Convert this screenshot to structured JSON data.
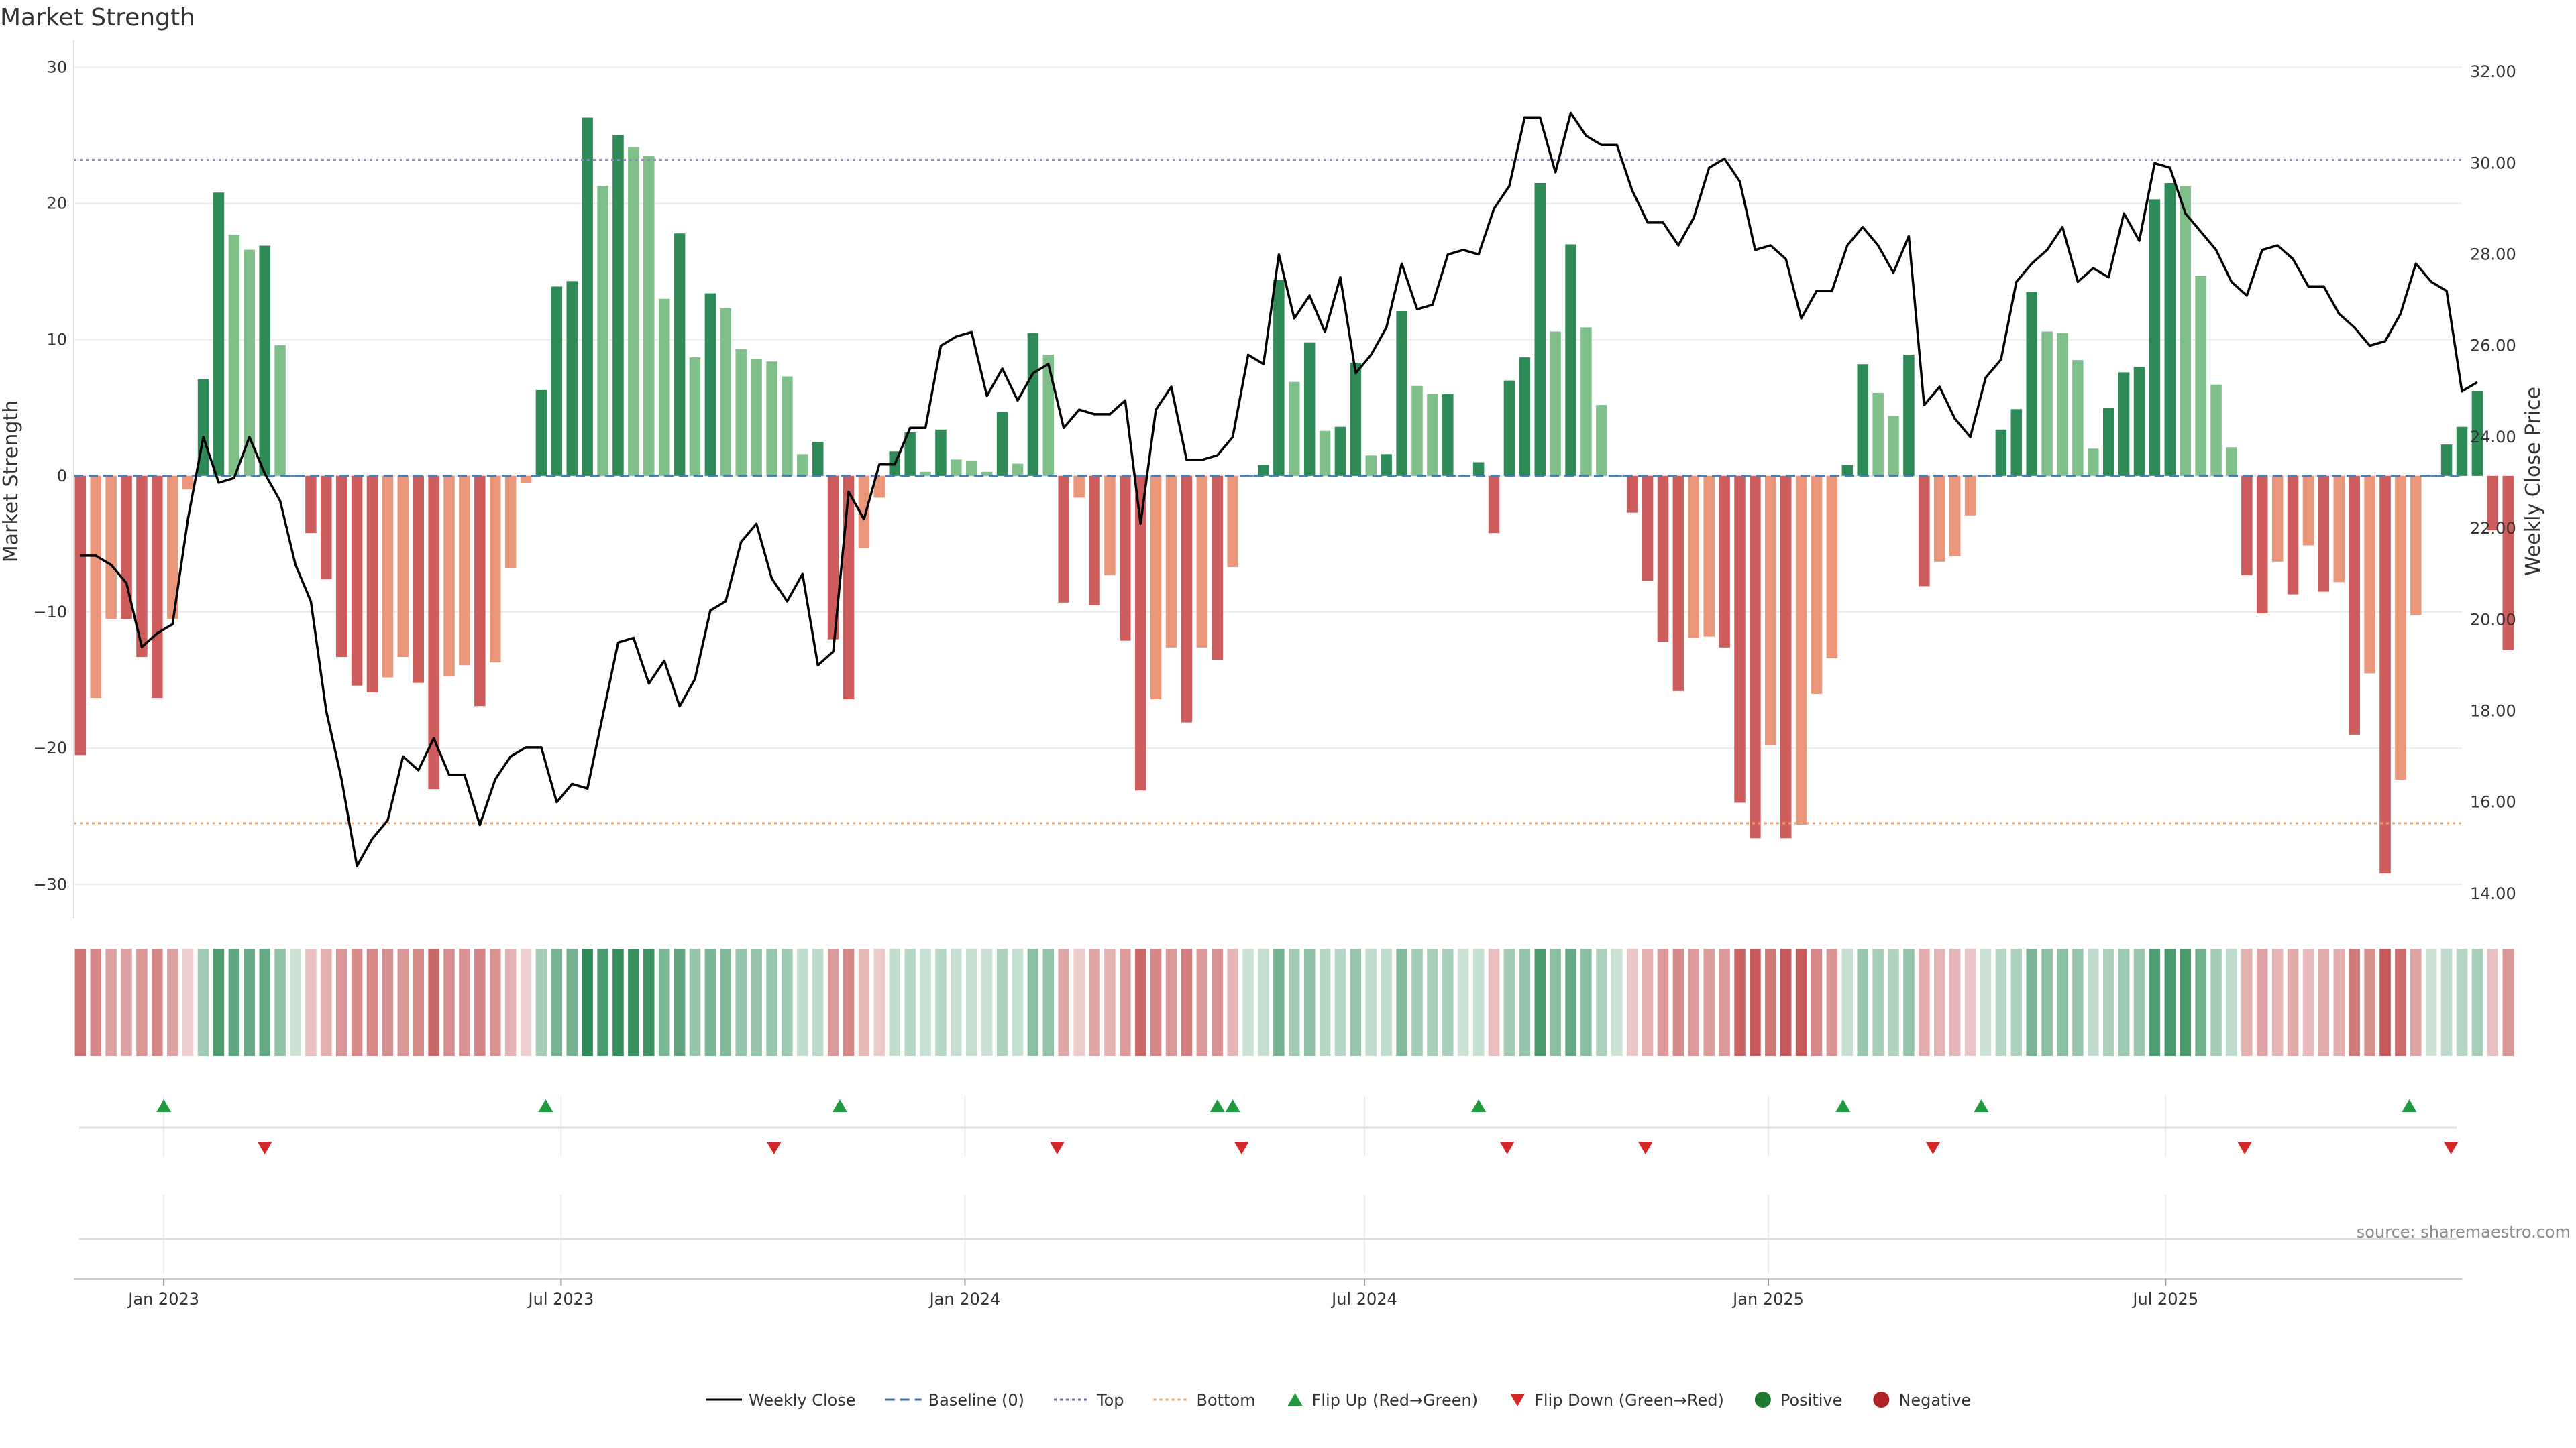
{
  "chart_data": {
    "type": "bar",
    "title": "Market Strength",
    "ylabel": "Market Strength",
    "y2label": "Weekly Close Price",
    "source_text": "source: sharemaestro.com",
    "ylim": [
      -32,
      31
    ],
    "y2lim": [
      13.6,
      32.4
    ],
    "x_range": [
      "2022-11-21",
      "2025-11-13"
    ],
    "y_ticks": [
      30,
      20,
      10,
      0,
      -10,
      -20,
      -30
    ],
    "y2_ticks": [
      "32.00",
      "30.00",
      "28.00",
      "26.00",
      "24.00",
      "22.00",
      "20.00",
      "18.00",
      "16.00",
      "14.00"
    ],
    "x_ticks": [
      {
        "label": "Jan 2023",
        "date": "2023-01-01"
      },
      {
        "label": "Jul 2023",
        "date": "2023-07-01"
      },
      {
        "label": "Jan 2024",
        "date": "2024-01-01"
      },
      {
        "label": "Jul 2024",
        "date": "2024-07-01"
      },
      {
        "label": "Jan 2025",
        "date": "2025-01-01"
      },
      {
        "label": "Jul 2025",
        "date": "2025-07-01"
      }
    ],
    "top_level": 23.2,
    "bottom_level": -25.5,
    "weeks_start": "2022-11-24",
    "strength": [
      -20.5,
      -16.3,
      -10.5,
      -10.5,
      -13.3,
      -16.3,
      -10.5,
      -1,
      7.1,
      20.8,
      17.7,
      16.6,
      16.9,
      9.6,
      0,
      -4.2,
      -7.6,
      -13.3,
      -15.4,
      -15.9,
      -14.8,
      -13.3,
      -15.2,
      -23,
      -14.7,
      -13.9,
      -16.9,
      -13.7,
      -6.8,
      -0.5,
      6.3,
      13.9,
      14.3,
      26.3,
      21.3,
      25,
      24.1,
      23.5,
      13,
      17.8,
      8.7,
      13.4,
      12.3,
      9.3,
      8.6,
      8.4,
      7.3,
      1.6,
      2.5,
      -12,
      -16.4,
      -5.3,
      -1.6,
      1.8,
      3.2,
      0.3,
      3.4,
      1.2,
      1.1,
      0.3,
      4.7,
      0.9,
      10.5,
      8.9,
      -9.3,
      -1.6,
      -9.5,
      -7.3,
      -12.1,
      -23.1,
      -16.4,
      -12.6,
      -18.1,
      -12.6,
      -13.5,
      -6.7,
      0,
      0.8,
      14.4,
      6.9,
      9.8,
      3.3,
      3.6,
      8.3,
      1.5,
      1.6,
      12.1,
      6.6,
      6.0,
      6.0,
      0,
      1.0,
      -4.2,
      7.0,
      8.7,
      21.5,
      10.6,
      17,
      10.9,
      5.2,
      0,
      -2.7,
      -7.7,
      -12.2,
      -15.8,
      -11.9,
      -11.8,
      -12.6,
      -24,
      -26.6,
      -19.8,
      -26.6,
      -25.6,
      -16,
      -13.4,
      0.8,
      8.2,
      6.1,
      4.4,
      8.9,
      -8.1,
      -6.3,
      -5.9,
      -2.9,
      0,
      3.4,
      4.9,
      13.5,
      10.6,
      10.5,
      8.5,
      2.0,
      5.0,
      7.6,
      8.0,
      20.3,
      21.5,
      21.3,
      14.7,
      6.7,
      2.1,
      -7.3,
      -10.1,
      -6.3,
      -8.7,
      -5.1,
      -8.5,
      -7.8,
      -19,
      -14.5,
      -29.2,
      -22.3,
      -10.2,
      0,
      2.3,
      3.6,
      6.2,
      -4,
      -12.8
    ],
    "weekly_close": [
      21.4,
      21.4,
      21.2,
      20.8,
      19.4,
      19.7,
      19.9,
      22.2,
      24,
      23,
      23.1,
      24,
      23.2,
      22.6,
      21.2,
      20.4,
      18,
      16.5,
      14.6,
      15.2,
      15.6,
      17.0,
      16.7,
      17.4,
      16.6,
      16.6,
      15.5,
      16.5,
      17.0,
      17.2,
      17.2,
      16.0,
      16.4,
      16.3,
      17.9,
      19.5,
      19.6,
      18.6,
      19.1,
      18.1,
      18.7,
      20.2,
      20.4,
      21.7,
      22.1,
      20.9,
      20.4,
      21,
      19.0,
      19.3,
      22.8,
      22.2,
      23.4,
      23.4,
      24.2,
      24.2,
      26,
      26.2,
      26.3,
      24.9,
      25.5,
      24.8,
      25.4,
      25.6,
      24.2,
      24.6,
      24.5,
      24.5,
      24.8,
      22.1,
      24.6,
      25.1,
      23.5,
      23.5,
      23.6,
      24.0,
      25.8,
      25.6,
      28,
      26.6,
      27.1,
      26.3,
      27.5,
      25.4,
      25.8,
      26.4,
      27.8,
      26.8,
      26.9,
      28,
      28.1,
      28.0,
      29.0,
      29.5,
      31.0,
      31.0,
      29.8,
      31.1,
      30.6,
      30.4,
      30.4,
      29.4,
      28.7,
      28.7,
      28.2,
      28.8,
      29.9,
      30.1,
      29.6,
      28.1,
      28.2,
      27.9,
      26.6,
      27.2,
      27.2,
      28.2,
      28.6,
      28.2,
      27.6,
      28.4,
      24.7,
      25.1,
      24.4,
      24.0,
      25.3,
      25.7,
      27.4,
      27.8,
      28.1,
      28.6,
      27.4,
      27.7,
      27.5,
      28.9,
      28.3,
      30,
      29.9,
      28.9,
      28.5,
      28.1,
      27.4,
      27.1,
      28.1,
      28.2,
      27.9,
      27.3,
      27.3,
      26.7,
      26.4,
      26,
      26.1,
      26.7,
      27.8,
      27.4,
      27.2,
      25.0,
      25.2
    ],
    "flip_up_dates": [
      "2023-01-01",
      "2023-06-24",
      "2023-11-05",
      "2024-04-25",
      "2024-05-02",
      "2024-08-22",
      "2025-02-04",
      "2025-04-08",
      "2025-10-20"
    ],
    "flip_down_dates": [
      "2023-02-16",
      "2023-10-06",
      "2024-02-12",
      "2024-05-06",
      "2024-09-04",
      "2024-11-06",
      "2025-03-17",
      "2025-08-06",
      "2025-11-08"
    ],
    "legend": [
      {
        "label": "Weekly Close",
        "kind": "line-solid",
        "color": "#000000"
      },
      {
        "label": "Baseline (0)",
        "kind": "line-dash",
        "color": "#3a6ea5"
      },
      {
        "label": "Top",
        "kind": "line-dot",
        "color": "#7b5ea7"
      },
      {
        "label": "Bottom",
        "kind": "line-dot",
        "color": "#e8a06a"
      },
      {
        "label": "Flip Up (Red→Green)",
        "kind": "triangle-up",
        "color": "#1f9a3f"
      },
      {
        "label": "Flip Down (Green→Red)",
        "kind": "triangle-down",
        "color": "#d62728"
      },
      {
        "label": "Positive",
        "kind": "dot",
        "color": "#1f7a30"
      },
      {
        "label": "Negative",
        "kind": "dot",
        "color": "#b22222"
      }
    ],
    "colors": {
      "pos_dark": "#2e8b57",
      "pos_light": "#7fc08a",
      "neg_dark": "#cd5c5c",
      "neg_light": "#e9967a",
      "top_line": "#9a7fd1",
      "bottom_line": "#f0a070",
      "baseline": "#4a7fb5",
      "close_line": "#000000"
    }
  }
}
